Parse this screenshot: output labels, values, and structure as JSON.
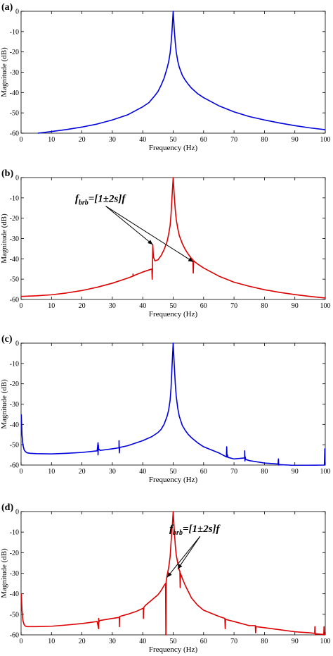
{
  "chart_data": [
    {
      "panel_label": "(a)",
      "type": "line",
      "xlabel": "Frequency (Hz)",
      "ylabel": "Magnitude (dB)",
      "xlim": [
        0,
        100
      ],
      "ylim": [
        -60,
        0
      ],
      "xticks": [
        0,
        10,
        20,
        30,
        40,
        50,
        60,
        70,
        80,
        90,
        100
      ],
      "yticks": [
        0,
        -10,
        -20,
        -30,
        -40,
        -50,
        -60
      ],
      "series": [
        {
          "color": "#0000dd",
          "x": [
            5.5,
            10,
            15,
            20,
            25,
            30,
            35,
            40,
            42,
            44,
            45,
            46,
            47,
            48,
            48.5,
            49,
            49.3,
            49.6,
            49.8,
            50,
            50.2,
            50.4,
            50.7,
            51,
            51.5,
            52,
            53,
            54,
            55,
            56,
            58,
            60,
            65,
            70,
            75,
            80,
            85,
            90,
            95,
            100
          ],
          "y": [
            -60,
            -59.2,
            -58.2,
            -57,
            -55.5,
            -53.5,
            -51,
            -47,
            -45,
            -41.5,
            -39.5,
            -36.5,
            -33,
            -28,
            -25,
            -20.5,
            -16,
            -10,
            -5,
            0,
            -5,
            -10,
            -15.5,
            -20,
            -24.5,
            -27.5,
            -31.5,
            -34,
            -36,
            -37.8,
            -40.5,
            -42.5,
            -46.5,
            -49.5,
            -51.8,
            -53.5,
            -55,
            -56.3,
            -57.4,
            -58.3
          ]
        }
      ],
      "annotations": []
    },
    {
      "panel_label": "(b)",
      "type": "line",
      "xlabel": "Frequency (Hz)",
      "ylabel": "Magnitude (dB)",
      "xlim": [
        0,
        100
      ],
      "ylim": [
        -60,
        0
      ],
      "xticks": [
        0,
        10,
        20,
        30,
        40,
        50,
        60,
        70,
        80,
        90,
        100
      ],
      "yticks": [
        0,
        -10,
        -20,
        -30,
        -40,
        -50,
        -60
      ],
      "series": [
        {
          "color": "#dd0000",
          "x": [
            0,
            5,
            10,
            15,
            20,
            25,
            30,
            35,
            36.8,
            36.8,
            36.8,
            37.5,
            40,
            42,
            43,
            43.1,
            43.2,
            43.3,
            43.5,
            44,
            45,
            46,
            47,
            48,
            48.5,
            49,
            49.3,
            49.6,
            49.8,
            50,
            50.2,
            50.4,
            50.7,
            51,
            51.5,
            52,
            53,
            54,
            55,
            56,
            56.5,
            56.6,
            56.7,
            56.8,
            57,
            58,
            60,
            65,
            70,
            75,
            80,
            85,
            90,
            95,
            100
          ],
          "y": [
            -58.5,
            -58.2,
            -57.7,
            -56.8,
            -55.6,
            -54,
            -52,
            -49.5,
            -48.5,
            -47.5,
            -48.5,
            -48,
            -46.5,
            -45.5,
            -45,
            -50,
            -45.5,
            -33,
            -39,
            -41,
            -40.5,
            -38.5,
            -35.5,
            -31.5,
            -28,
            -23.5,
            -18,
            -10,
            -5,
            0,
            -5,
            -10,
            -16,
            -20.5,
            -25,
            -28.5,
            -32.5,
            -35.5,
            -37.8,
            -39.8,
            -40.5,
            -47,
            -42,
            -41,
            -41.3,
            -42.5,
            -44.5,
            -48.5,
            -51.5,
            -53.5,
            -55.2,
            -56.5,
            -57.6,
            -58.5,
            -59.3
          ]
        }
      ],
      "annotations": [
        {
          "text": "f",
          "subscript": "brb",
          "suffix": "=[1±2s]f",
          "x": 26,
          "y": -12,
          "targets": [
            [
              43.3,
              -33
            ],
            [
              56.6,
              -41.5
            ]
          ]
        }
      ]
    },
    {
      "panel_label": "(c)",
      "type": "line",
      "xlabel": "Frequency (Hz)",
      "ylabel": "Magnitude (dB)",
      "xlim": [
        0,
        100
      ],
      "ylim": [
        -60,
        0
      ],
      "xticks": [
        0,
        10,
        20,
        30,
        40,
        50,
        60,
        70,
        80,
        90,
        100
      ],
      "yticks": [
        0,
        -10,
        -20,
        -30,
        -40,
        -50,
        -60
      ],
      "series": [
        {
          "color": "#0000dd",
          "x": [
            0.05,
            0.3,
            0.6,
            1,
            1.5,
            2,
            3,
            5,
            10,
            15,
            20,
            25,
            25.3,
            25.3,
            25.4,
            25.5,
            25.6,
            26,
            30,
            32.2,
            32.2,
            32.3,
            32.4,
            32.5,
            35,
            40,
            43,
            45,
            46,
            47,
            48,
            48.5,
            49,
            49.3,
            49.6,
            49.8,
            50,
            50.2,
            50.4,
            50.7,
            51,
            51.5,
            52,
            53,
            54,
            55,
            56,
            58,
            60,
            65,
            67.5,
            67.6,
            67.7,
            67.8,
            68,
            70,
            73.5,
            73.5,
            73.6,
            73.7,
            73.8,
            75,
            80,
            84.5,
            84.6,
            84.7,
            85,
            88,
            90,
            99.7,
            99.8,
            99.85,
            99.9,
            100
          ],
          "y": [
            -35,
            -45,
            -50,
            -52.5,
            -53.5,
            -54,
            -54.2,
            -54.4,
            -54.5,
            -54.2,
            -53.8,
            -53,
            -49,
            -55,
            -50,
            -52.5,
            -52.2,
            -52.8,
            -52,
            -51.5,
            -48,
            -54,
            -51.5,
            -51.3,
            -50.5,
            -48,
            -46,
            -44,
            -42.5,
            -40,
            -36,
            -33,
            -28,
            -22,
            -12,
            -6,
            0,
            -6,
            -12,
            -20,
            -26,
            -32,
            -36,
            -40.5,
            -43,
            -45,
            -46.5,
            -49,
            -51,
            -54,
            -56,
            -51,
            -56,
            -55,
            -56.2,
            -57,
            -56.5,
            -53,
            -58,
            -56,
            -57.2,
            -57.8,
            -59,
            -59.5,
            -57,
            -60,
            -59.8,
            -60,
            -60.2,
            -60,
            -55,
            -52,
            -60,
            -60
          ]
        }
      ],
      "annotations": []
    },
    {
      "panel_label": "(d)",
      "type": "line",
      "xlabel": "Frequency (Hz)",
      "ylabel": "Magnitude (dB)",
      "xlim": [
        0,
        100
      ],
      "ylim": [
        -60,
        0
      ],
      "xticks": [
        0,
        10,
        20,
        30,
        40,
        50,
        60,
        70,
        80,
        90,
        100
      ],
      "yticks": [
        0,
        -10,
        -20,
        -30,
        -40,
        -50,
        -60
      ],
      "series": [
        {
          "color": "#dd0000",
          "x": [
            0.05,
            0.3,
            0.6,
            1,
            1.5,
            2,
            3,
            5,
            10,
            15,
            20,
            25,
            25.5,
            25.5,
            25.6,
            25.7,
            26,
            30,
            32.3,
            32.3,
            32.4,
            32.5,
            35,
            38,
            40.2,
            40.2,
            40.3,
            40.4,
            41,
            43,
            45,
            46,
            47,
            47.5,
            47.6,
            47.7,
            47.8,
            48,
            48.5,
            49,
            49.3,
            49.6,
            49.8,
            50,
            50.2,
            50.4,
            50.7,
            51,
            51.5,
            52,
            52.2,
            52.3,
            52.4,
            52.5,
            53,
            54,
            55,
            56,
            58,
            60,
            65,
            67,
            67.1,
            67.2,
            67.3,
            70,
            75,
            77,
            77.1,
            77.2,
            80,
            85,
            90,
            95,
            96.5,
            96.6,
            96.7,
            97,
            99.5,
            99.6,
            99.7,
            99.8,
            100
          ],
          "y": [
            -40,
            -48,
            -53,
            -55,
            -55.8,
            -56,
            -56,
            -56,
            -55.8,
            -55.2,
            -54.5,
            -53.5,
            -57,
            -52,
            -53.8,
            -53.2,
            -53,
            -52,
            -51.5,
            -56,
            -51.2,
            -51,
            -50,
            -48.5,
            -47,
            -52,
            -47.5,
            -46.5,
            -45.5,
            -43,
            -40.5,
            -38.5,
            -36,
            -35,
            -60,
            -34,
            -33,
            -31,
            -27.5,
            -22,
            -15,
            -9,
            -5,
            0,
            -5,
            -10,
            -16.5,
            -21,
            -25,
            -28.5,
            -29,
            -37,
            -30,
            -30.5,
            -32.5,
            -36,
            -39,
            -42,
            -45.5,
            -48,
            -51,
            -52,
            -57,
            -53,
            -52.5,
            -53.5,
            -55.5,
            -55.5,
            -59,
            -56,
            -56.5,
            -57.5,
            -58.5,
            -59,
            -59.3,
            -56,
            -60,
            -59.5,
            -59.8,
            -56,
            -60,
            -59.8,
            -60
          ]
        }
      ],
      "annotations": [
        {
          "text": "f",
          "subscript": "brb",
          "suffix": "=[1±2s]f",
          "x": 57,
          "y": -10,
          "targets": [
            [
              48,
              -32
            ],
            [
              51.5,
              -28
            ]
          ]
        }
      ]
    }
  ]
}
